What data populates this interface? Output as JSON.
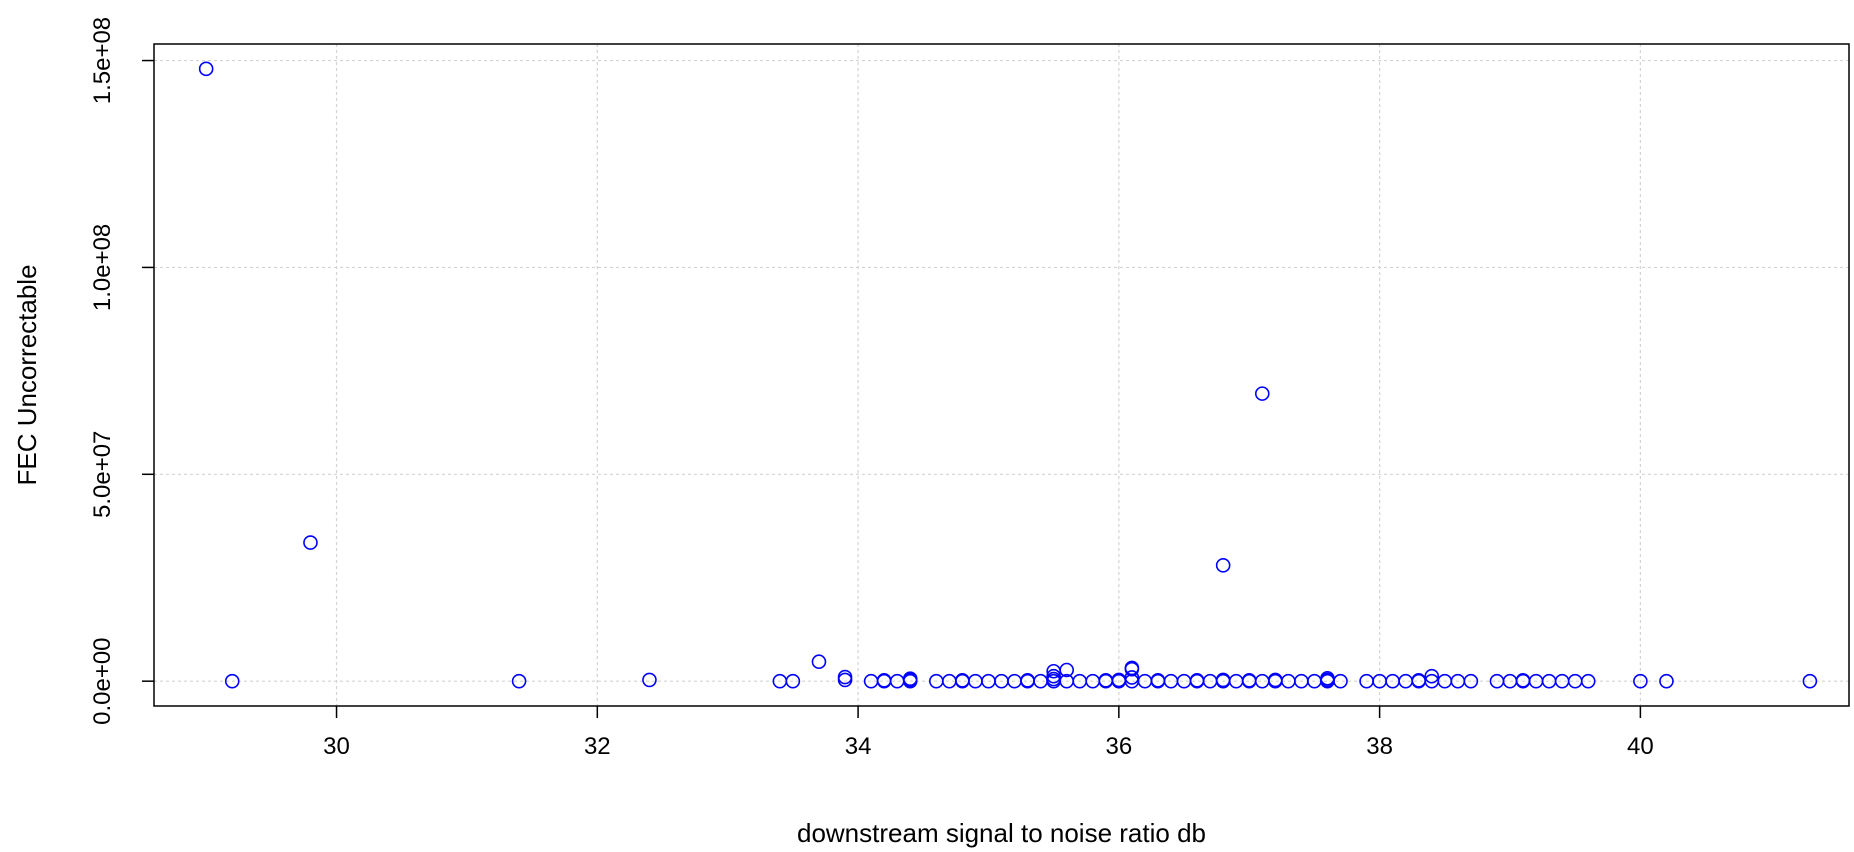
{
  "chart_data": {
    "type": "scatter",
    "title": "",
    "xlabel": "downstream signal to noise ratio db",
    "ylabel": "FEC Uncorrectable",
    "xlim": [
      28.6,
      41.6
    ],
    "ylim": [
      -6000000,
      154000000
    ],
    "x_ticks": [
      30,
      32,
      34,
      36,
      38,
      40
    ],
    "x_tick_labels": [
      "30",
      "32",
      "34",
      "36",
      "38",
      "40"
    ],
    "y_ticks": [
      0,
      50000000,
      100000000,
      150000000
    ],
    "y_tick_labels": [
      "0.0e+00",
      "5.0e+07",
      "1.0e+08",
      "1.5e+08"
    ],
    "grid": true,
    "marker": "open-circle",
    "point_color": "#0000ff",
    "series": [
      {
        "points": [
          [
            29.0,
            148000000
          ],
          [
            29.2,
            0
          ],
          [
            29.8,
            33500000
          ],
          [
            31.4,
            0
          ],
          [
            32.4,
            300000
          ],
          [
            33.4,
            0
          ],
          [
            33.5,
            0
          ],
          [
            33.7,
            4700000
          ],
          [
            33.9,
            1000000
          ],
          [
            33.9,
            300000
          ],
          [
            34.1,
            0
          ],
          [
            34.2,
            0
          ],
          [
            34.2,
            200000
          ],
          [
            34.3,
            0
          ],
          [
            34.4,
            0
          ],
          [
            34.4,
            300000
          ],
          [
            34.4,
            600000
          ],
          [
            34.6,
            0
          ],
          [
            34.7,
            0
          ],
          [
            34.8,
            0
          ],
          [
            34.8,
            200000
          ],
          [
            34.9,
            0
          ],
          [
            35.0,
            0
          ],
          [
            35.1,
            0
          ],
          [
            35.2,
            0
          ],
          [
            35.3,
            0
          ],
          [
            35.3,
            200000
          ],
          [
            35.4,
            0
          ],
          [
            35.5,
            0
          ],
          [
            35.5,
            500000
          ],
          [
            35.5,
            1200000
          ],
          [
            35.5,
            2400000
          ],
          [
            35.6,
            0
          ],
          [
            35.6,
            2700000
          ],
          [
            35.7,
            0
          ],
          [
            35.8,
            0
          ],
          [
            35.9,
            0
          ],
          [
            35.9,
            200000
          ],
          [
            36.0,
            0
          ],
          [
            36.0,
            300000
          ],
          [
            36.1,
            0
          ],
          [
            36.1,
            900000
          ],
          [
            36.1,
            2900000
          ],
          [
            36.1,
            3200000
          ],
          [
            36.2,
            0
          ],
          [
            36.3,
            0
          ],
          [
            36.3,
            200000
          ],
          [
            36.4,
            0
          ],
          [
            36.5,
            0
          ],
          [
            36.6,
            0
          ],
          [
            36.6,
            200000
          ],
          [
            36.7,
            0
          ],
          [
            36.8,
            0
          ],
          [
            36.8,
            300000
          ],
          [
            36.8,
            28000000
          ],
          [
            36.9,
            0
          ],
          [
            37.0,
            0
          ],
          [
            37.0,
            200000
          ],
          [
            37.1,
            0
          ],
          [
            37.1,
            69500000
          ],
          [
            37.2,
            0
          ],
          [
            37.2,
            300000
          ],
          [
            37.3,
            0
          ],
          [
            37.4,
            0
          ],
          [
            37.5,
            0
          ],
          [
            37.6,
            0
          ],
          [
            37.6,
            300000
          ],
          [
            37.6,
            700000
          ],
          [
            37.7,
            0
          ],
          [
            37.9,
            0
          ],
          [
            38.0,
            0
          ],
          [
            38.1,
            0
          ],
          [
            38.2,
            0
          ],
          [
            38.3,
            0
          ],
          [
            38.3,
            200000
          ],
          [
            38.4,
            0
          ],
          [
            38.4,
            1200000
          ],
          [
            38.5,
            0
          ],
          [
            38.6,
            0
          ],
          [
            38.7,
            0
          ],
          [
            38.9,
            0
          ],
          [
            39.0,
            0
          ],
          [
            39.1,
            0
          ],
          [
            39.1,
            200000
          ],
          [
            39.2,
            0
          ],
          [
            39.3,
            0
          ],
          [
            39.4,
            0
          ],
          [
            39.5,
            0
          ],
          [
            39.6,
            0
          ],
          [
            40.0,
            0
          ],
          [
            40.2,
            0
          ],
          [
            41.3,
            0
          ]
        ]
      }
    ]
  }
}
